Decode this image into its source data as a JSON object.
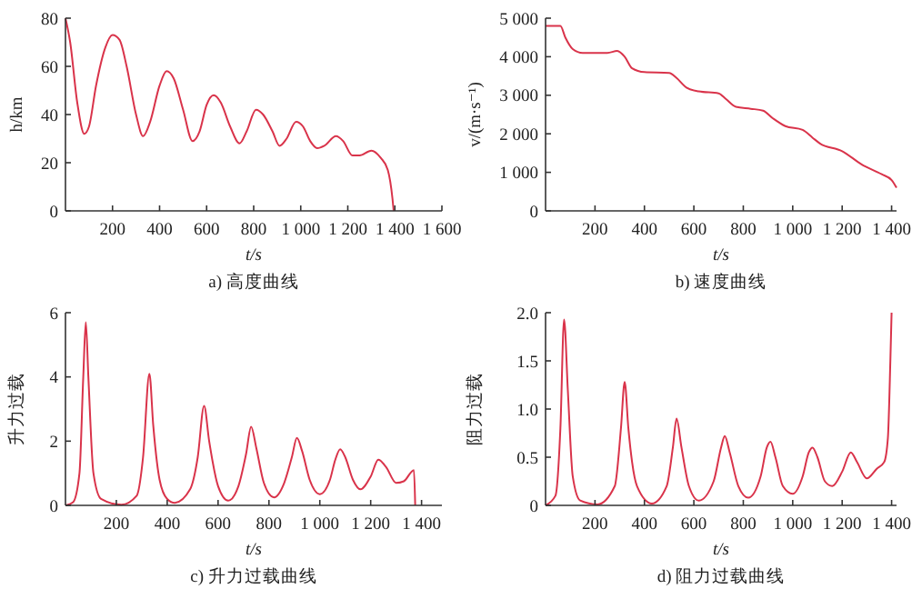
{
  "chart_data": [
    {
      "type": "line",
      "title": "a) 高度曲线",
      "xlabel": "t/s",
      "ylabel": "h/km",
      "xlim": [
        0,
        1600
      ],
      "ylim": [
        0,
        80
      ],
      "xticks": [
        200,
        400,
        600,
        800,
        {
          "value": 1000,
          "label": "1 000"
        },
        {
          "value": 1200,
          "label": "1 200"
        },
        {
          "value": 1400,
          "label": "1 400"
        },
        {
          "value": 1600,
          "label": "1 600"
        }
      ],
      "yticks": [
        0,
        20,
        40,
        60,
        80
      ],
      "grid": false,
      "marker": "none",
      "line_style": "solid",
      "x": [
        0,
        20,
        50,
        80,
        100,
        130,
        170,
        200,
        230,
        260,
        300,
        330,
        360,
        400,
        430,
        460,
        500,
        540,
        570,
        600,
        630,
        660,
        700,
        740,
        770,
        810,
        840,
        880,
        910,
        940,
        980,
        1010,
        1040,
        1070,
        1100,
        1150,
        1180,
        1220,
        1250,
        1300,
        1340,
        1370,
        1390,
        1395
      ],
      "series": [
        {
          "color": "#d9334a",
          "values": [
            80,
            70,
            45,
            32,
            35,
            52,
            68,
            73,
            71,
            60,
            40,
            31,
            37,
            52,
            58,
            55,
            42,
            29,
            33,
            44,
            48,
            45,
            35,
            28,
            33,
            42,
            40,
            33,
            27,
            30,
            37,
            35,
            29,
            26,
            27,
            31,
            29,
            23,
            23,
            25,
            22,
            17,
            5,
            0
          ]
        }
      ]
    },
    {
      "type": "line",
      "title": "b) 速度曲线",
      "xlabel": "t/s",
      "ylabel": "v/(m·s⁻¹)",
      "xlim": [
        0,
        1420
      ],
      "ylim": [
        0,
        5000
      ],
      "xticks": [
        200,
        400,
        600,
        800,
        {
          "value": 1000,
          "label": "1 000"
        },
        {
          "value": 1200,
          "label": "1 200"
        },
        {
          "value": 1400,
          "label": "1 400"
        }
      ],
      "yticks": [
        0,
        {
          "value": 1000,
          "label": "1 000"
        },
        {
          "value": 2000,
          "label": "2 000"
        },
        {
          "value": 3000,
          "label": "3 000"
        },
        {
          "value": 4000,
          "label": "4 000"
        },
        {
          "value": 5000,
          "label": "5 000"
        }
      ],
      "grid": false,
      "marker": "none",
      "line_style": "solid",
      "x": [
        0,
        60,
        80,
        110,
        150,
        250,
        290,
        320,
        350,
        400,
        500,
        530,
        570,
        620,
        700,
        730,
        770,
        830,
        880,
        920,
        970,
        1040,
        1080,
        1110,
        1200,
        1280,
        1360,
        1400,
        1420
      ],
      "series": [
        {
          "color": "#d9334a",
          "values": [
            4800,
            4800,
            4500,
            4200,
            4100,
            4100,
            4150,
            4000,
            3700,
            3600,
            3580,
            3450,
            3200,
            3100,
            3050,
            2900,
            2700,
            2650,
            2600,
            2400,
            2200,
            2100,
            1900,
            1750,
            1550,
            1200,
            950,
            800,
            600
          ]
        }
      ]
    },
    {
      "type": "line",
      "title": "c) 升力过载曲线",
      "xlabel": "t/s",
      "ylabel": "升力过载",
      "xlim": [
        0,
        1480
      ],
      "ylim": [
        0,
        6
      ],
      "xticks": [
        200,
        400,
        600,
        800,
        {
          "value": 1000,
          "label": "1 000"
        },
        {
          "value": 1200,
          "label": "1 200"
        },
        {
          "value": 1400,
          "label": "1 400"
        }
      ],
      "yticks": [
        0,
        2,
        4,
        6
      ],
      "grid": false,
      "marker": "none",
      "line_style": "solid",
      "x": [
        0,
        30,
        55,
        70,
        80,
        90,
        110,
        140,
        220,
        280,
        305,
        330,
        345,
        370,
        400,
        430,
        490,
        520,
        545,
        565,
        600,
        640,
        680,
        710,
        730,
        750,
        780,
        820,
        860,
        890,
        910,
        930,
        960,
        1000,
        1040,
        1060,
        1080,
        1100,
        1130,
        1160,
        1200,
        1230,
        1260,
        1300,
        1330,
        1370,
        1375
      ],
      "series": [
        {
          "color": "#d9334a",
          "values": [
            0,
            0.1,
            1,
            4,
            5.7,
            4,
            1,
            0.2,
            0.02,
            0.3,
            1.5,
            4.1,
            2.5,
            0.8,
            0.2,
            0.08,
            0.5,
            1.5,
            3.1,
            2,
            0.6,
            0.15,
            0.6,
            1.6,
            2.45,
            1.8,
            0.7,
            0.25,
            0.7,
            1.5,
            2.1,
            1.7,
            0.8,
            0.35,
            0.8,
            1.4,
            1.75,
            1.5,
            0.8,
            0.5,
            0.9,
            1.42,
            1.2,
            0.7,
            0.75,
            1.1,
            0
          ]
        }
      ]
    },
    {
      "type": "line",
      "title": "d) 阻力过载曲线",
      "xlabel": "t/s",
      "ylabel": "阻力过载",
      "xlim": [
        0,
        1420
      ],
      "ylim": [
        0,
        2
      ],
      "xticks": [
        200,
        400,
        600,
        800,
        {
          "value": 1000,
          "label": "1 000"
        },
        {
          "value": 1200,
          "label": "1 200"
        },
        {
          "value": 1400,
          "label": "1 400"
        }
      ],
      "yticks": [
        0,
        {
          "value": 0.5,
          "label": "0.5"
        },
        {
          "value": 1,
          "label": "1.0"
        },
        {
          "value": 1.5,
          "label": "1.5"
        },
        {
          "value": 2,
          "label": "2.0"
        }
      ],
      "grid": false,
      "marker": "none",
      "line_style": "solid",
      "x": [
        0,
        40,
        60,
        75,
        90,
        110,
        140,
        210,
        280,
        305,
        320,
        335,
        370,
        430,
        490,
        515,
        530,
        550,
        580,
        620,
        680,
        710,
        725,
        745,
        780,
        820,
        870,
        895,
        910,
        930,
        960,
        1000,
        1040,
        1065,
        1080,
        1100,
        1130,
        1160,
        1200,
        1235,
        1260,
        1300,
        1340,
        1370,
        1385,
        1395,
        1400
      ],
      "series": [
        {
          "color": "#d9334a",
          "values": [
            0,
            0.1,
            0.8,
            1.93,
            1.2,
            0.3,
            0.05,
            0.01,
            0.2,
            0.8,
            1.28,
            0.8,
            0.2,
            0.02,
            0.2,
            0.6,
            0.9,
            0.6,
            0.2,
            0.05,
            0.25,
            0.6,
            0.72,
            0.55,
            0.2,
            0.08,
            0.3,
            0.6,
            0.66,
            0.5,
            0.2,
            0.12,
            0.3,
            0.55,
            0.6,
            0.5,
            0.25,
            0.2,
            0.35,
            0.55,
            0.45,
            0.28,
            0.38,
            0.45,
            0.7,
            1.5,
            2.0
          ]
        }
      ]
    }
  ]
}
